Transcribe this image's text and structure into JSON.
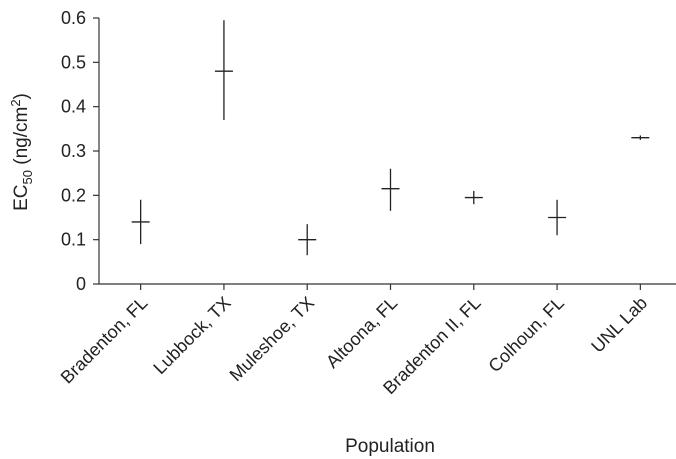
{
  "chart_data": {
    "type": "scatter",
    "title": "",
    "xlabel": "Population",
    "ylabel": {
      "prefix": "EC",
      "sub": "50",
      "unit_prefix": " (ng/cm",
      "sup": "2",
      "unit_suffix": ")"
    },
    "ylim": [
      0,
      0.6
    ],
    "yticks": [
      "0",
      "0.1",
      "0.2",
      "0.3",
      "0.4",
      "0.5",
      "0.6"
    ],
    "categories": [
      "Bradenton, FL",
      "Lubbock, TX",
      "Muleshoe, TX",
      "Altoona, FL",
      "Bradenton II, FL",
      "Colhoun, FL",
      "UNL Lab"
    ],
    "series": [
      {
        "values": [
          0.14,
          0.48,
          0.1,
          0.215,
          0.195,
          0.15,
          0.33
        ],
        "lower": [
          0.09,
          0.37,
          0.065,
          0.165,
          0.18,
          0.11,
          0.325
        ],
        "upper": [
          0.19,
          0.595,
          0.135,
          0.26,
          0.21,
          0.19,
          0.335
        ]
      }
    ],
    "grid": false,
    "legend": "none",
    "colors": {
      "marks": "#222222",
      "axes": "#333333",
      "text": "#222222"
    }
  }
}
